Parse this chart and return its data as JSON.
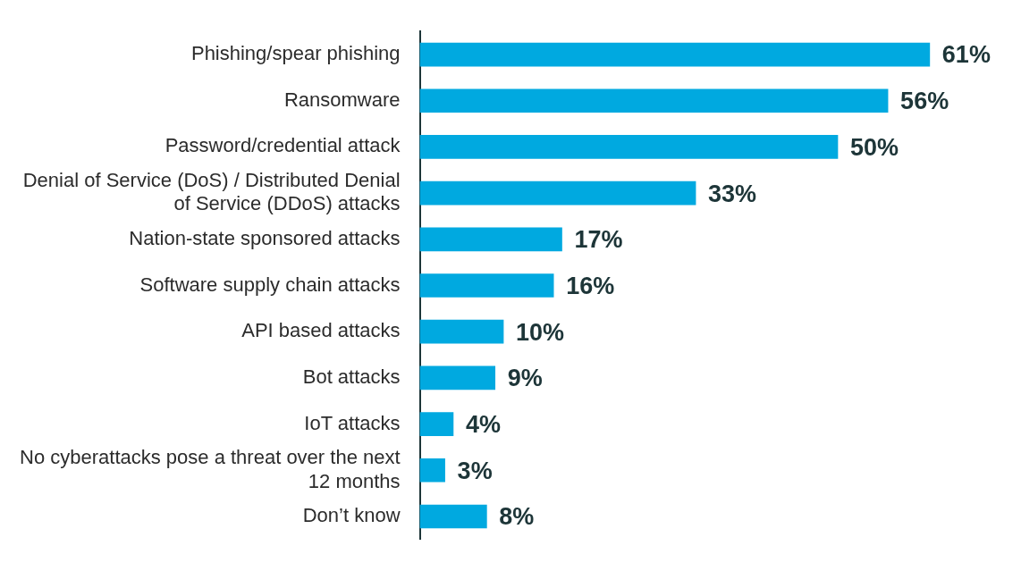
{
  "chart_data": {
    "type": "bar",
    "orientation": "horizontal",
    "categories": [
      "Phishing/spear phishing",
      "Ransomware",
      "Password/credential attack",
      "Denial of Service (DoS) / Distributed Denial of Service (DDoS) attacks",
      "Nation-state sponsored attacks",
      "Software supply chain attacks",
      "API based attacks",
      "Bot attacks",
      "IoT attacks",
      "No cyberattacks pose a threat over the next 12 months",
      "Don’t know"
    ],
    "values": [
      61,
      56,
      50,
      33,
      17,
      16,
      10,
      9,
      4,
      3,
      8
    ],
    "color": "#00a9e0",
    "value_labels": [
      "61%",
      "56%",
      "50%",
      "33%",
      "17%",
      "16%",
      "10%",
      "9%",
      "4%",
      "3%",
      "8%"
    ],
    "grid": false,
    "legend": false
  }
}
